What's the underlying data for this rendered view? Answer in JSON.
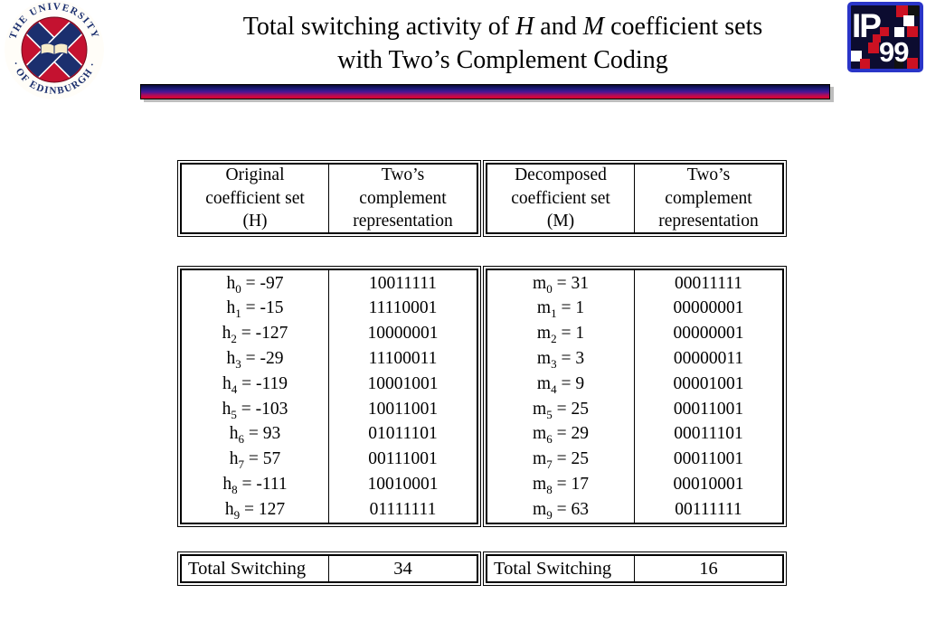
{
  "title": {
    "segments": [
      {
        "text": "Total switching activity of "
      },
      {
        "text": "H",
        "italic": true
      },
      {
        "text": " and "
      },
      {
        "text": "M",
        "italic": true
      },
      {
        "text": " coefficient sets"
      },
      {
        "text": "\n"
      },
      {
        "text": "with Two’s Complement Coding"
      }
    ]
  },
  "logos": {
    "university_seal": {
      "arc_top": "THE UNIVERSITY",
      "arc_bottom": "· OF EDINBURGH ·"
    },
    "ip99": {
      "ip": "IP",
      "year": "99"
    }
  },
  "tables": {
    "header": {
      "h_set_label": "Original\ncoefficient set\n(H)",
      "h_repr_label": "Two’s\ncomplement\nrepresentation",
      "m_set_label": "Decomposed\ncoefficient set\n(M)",
      "m_repr_label": "Two’s\ncomplement\nrepresentation"
    },
    "h_coefficients": [
      {
        "name": "h",
        "sub": "0",
        "value": "-97",
        "binary": "10011111"
      },
      {
        "name": "h",
        "sub": "1",
        "value": "-15",
        "binary": "11110001"
      },
      {
        "name": "h",
        "sub": "2",
        "value": "-127",
        "binary": "10000001"
      },
      {
        "name": "h",
        "sub": "3",
        "value": "-29",
        "binary": "11100011"
      },
      {
        "name": "h",
        "sub": "4",
        "value": "-119",
        "binary": "10001001"
      },
      {
        "name": "h",
        "sub": "5",
        "value": "-103",
        "binary": "10011001"
      },
      {
        "name": "h",
        "sub": "6",
        "value": "93",
        "binary": "01011101"
      },
      {
        "name": "h",
        "sub": "7",
        "value": "57",
        "binary": "00111001"
      },
      {
        "name": "h",
        "sub": "8",
        "value": "-111",
        "binary": "10010001"
      },
      {
        "name": "h",
        "sub": "9",
        "value": "127",
        "binary": "01111111"
      }
    ],
    "m_coefficients": [
      {
        "name": "m",
        "sub": "0",
        "value": "31",
        "binary": "00011111"
      },
      {
        "name": "m",
        "sub": "1",
        "value": "1",
        "binary": "00000001"
      },
      {
        "name": "m",
        "sub": "2",
        "value": "1",
        "binary": "00000001"
      },
      {
        "name": "m",
        "sub": "3",
        "value": "3",
        "binary": "00000011"
      },
      {
        "name": "m",
        "sub": "4",
        "value": "9",
        "binary": "00001001"
      },
      {
        "name": "m",
        "sub": "5",
        "value": "25",
        "binary": "00011001"
      },
      {
        "name": "m",
        "sub": "6",
        "value": "29",
        "binary": "00011101"
      },
      {
        "name": "m",
        "sub": "7",
        "value": "25",
        "binary": "00011001"
      },
      {
        "name": "m",
        "sub": "8",
        "value": "17",
        "binary": "00010001"
      },
      {
        "name": "m",
        "sub": "9",
        "value": "63",
        "binary": "00111111"
      }
    ],
    "totals": {
      "h": {
        "label": "Total Switching",
        "value": "34"
      },
      "m": {
        "label": "Total Switching",
        "value": "16"
      }
    }
  },
  "colors": {
    "bar_top": "#0a0a36",
    "bar_mid": "#4b1496",
    "bar_bottom": "#d8053c",
    "seal_red": "#c41230",
    "seal_navy": "#1b2f6e",
    "ip99_bg": "#0c0c30",
    "ip99_border": "#2a35c8",
    "ip99_red": "#cc1122"
  }
}
